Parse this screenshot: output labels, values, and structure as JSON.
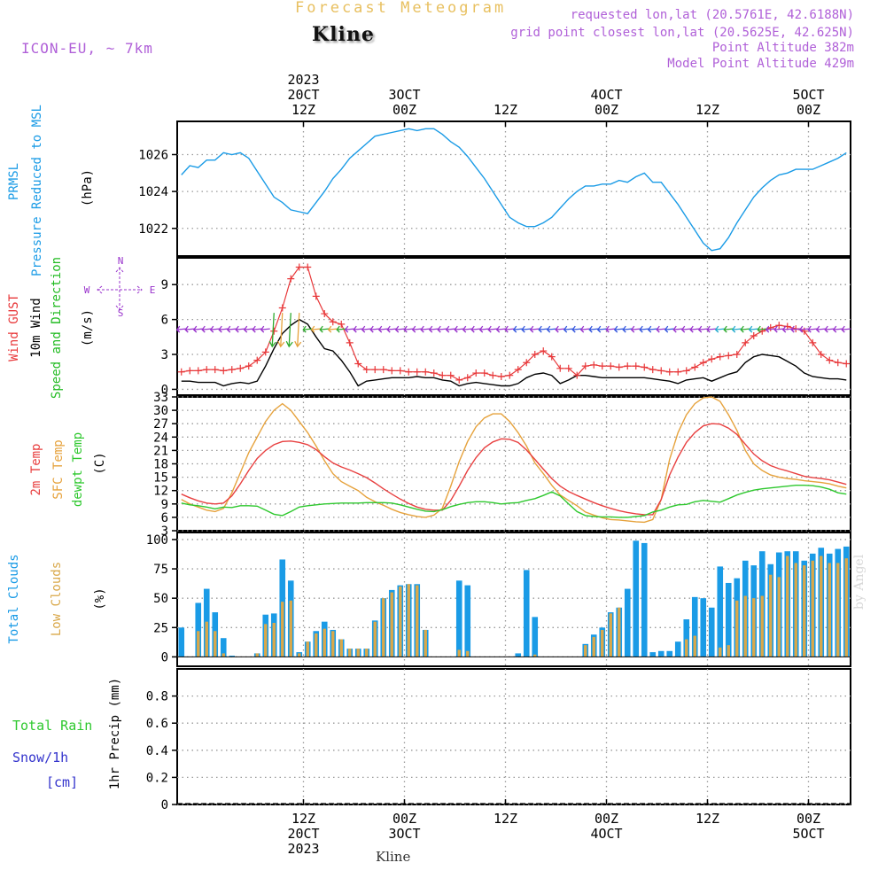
{
  "header": {
    "title": "Forecast Meteogram",
    "location": "Kline",
    "model": "ICON-EU, ~ 7km",
    "requested": "requested lon,lat (20.5761E, 42.6188N)",
    "gridpoint": "grid point closest lon,lat (20.5625E, 42.625N)",
    "point_altitude": "Point Altitude 382m",
    "model_altitude": "Model Point Altitude 429m"
  },
  "footer": {
    "location": "Kline",
    "watermark": "by Angel"
  },
  "colors": {
    "pressure": "#1a9be6",
    "gust": "#e8383a",
    "wind": "#000000",
    "dir": "#22bb22",
    "temp2m": "#e84040",
    "sfc": "#e6a23c",
    "dew": "#2ec82e",
    "cloud_total": "#1a9be6",
    "cloud_low": "#d9a84a",
    "arrow": "#9933cc",
    "snow": "#3333cc",
    "label_purple": "#b060d8"
  },
  "time_axis": {
    "top": [
      {
        "t": 15,
        "lines": [
          "2023",
          "20CT",
          "12Z"
        ]
      },
      {
        "t": 27,
        "lines": [
          "3OCT",
          "00Z"
        ]
      },
      {
        "t": 39,
        "lines": [
          "12Z"
        ]
      },
      {
        "t": 51,
        "lines": [
          "4OCT",
          "00Z"
        ]
      },
      {
        "t": 63,
        "lines": [
          "12Z"
        ]
      },
      {
        "t": 75,
        "lines": [
          "5OCT",
          "00Z"
        ]
      }
    ],
    "bottom": [
      {
        "t": 15,
        "lines": [
          "12Z",
          "20CT",
          "2023"
        ]
      },
      {
        "t": 27,
        "lines": [
          "00Z",
          "3OCT"
        ]
      },
      {
        "t": 39,
        "lines": [
          "12Z"
        ]
      },
      {
        "t": 51,
        "lines": [
          "00Z",
          "4OCT"
        ]
      },
      {
        "t": 63,
        "lines": [
          "12Z"
        ]
      },
      {
        "t": 75,
        "lines": [
          "00Z",
          "5OCT"
        ]
      }
    ]
  },
  "chart_data": [
    {
      "id": "pressure",
      "type": "line",
      "title": "PRMSL Pressure Reduced to MSL",
      "ylabel": "(hPa)",
      "ylim": [
        1020.5,
        1027.8
      ],
      "yticks": [
        1022,
        1024,
        1026
      ],
      "series": [
        {
          "name": "PRMSL",
          "values": [
            1024.9,
            1025.4,
            1025.3,
            1025.7,
            1025.7,
            1026.1,
            1026.0,
            1026.1,
            1025.8,
            1025.1,
            1024.4,
            1023.7,
            1023.4,
            1023.0,
            1022.9,
            1022.8,
            1023.4,
            1024.0,
            1024.7,
            1025.2,
            1025.8,
            1026.2,
            1026.6,
            1027.0,
            1027.1,
            1027.2,
            1027.3,
            1027.4,
            1027.3,
            1027.4,
            1027.4,
            1027.1,
            1026.7,
            1026.4,
            1025.9,
            1025.3,
            1024.7,
            1024.0,
            1023.3,
            1022.6,
            1022.3,
            1022.1,
            1022.1,
            1022.3,
            1022.6,
            1023.1,
            1023.6,
            1024.0,
            1024.3,
            1024.3,
            1024.4,
            1024.4,
            1024.6,
            1024.5,
            1024.8,
            1025.0,
            1024.5,
            1024.5,
            1023.9,
            1023.3,
            1022.6,
            1021.9,
            1021.2,
            1020.8,
            1020.9,
            1021.5,
            1022.3,
            1023.0,
            1023.7,
            1024.2,
            1024.6,
            1024.9,
            1025.0,
            1025.2,
            1025.2,
            1025.2,
            1025.4,
            1025.6,
            1025.8,
            1026.1
          ]
        }
      ]
    },
    {
      "id": "wind",
      "type": "line",
      "title": "Wind GUST, 10m Wind Speed and Direction",
      "ylabel": "(m/s)",
      "ylim": [
        -0.5,
        11.3
      ],
      "yticks": [
        0,
        3,
        6,
        9
      ],
      "compass": {
        "w": "W",
        "e": "E",
        "n": "N",
        "s": "S"
      },
      "series": [
        {
          "name": "Wind GUST",
          "values": [
            1.5,
            1.6,
            1.6,
            1.7,
            1.7,
            1.6,
            1.7,
            1.8,
            2.0,
            2.5,
            3.2,
            5.0,
            7.0,
            9.5,
            10.5,
            10.5,
            8.0,
            6.5,
            5.8,
            5.6,
            4.0,
            2.2,
            1.7,
            1.7,
            1.7,
            1.6,
            1.6,
            1.5,
            1.5,
            1.5,
            1.4,
            1.2,
            1.2,
            0.8,
            1.0,
            1.4,
            1.4,
            1.2,
            1.1,
            1.2,
            1.7,
            2.3,
            3.0,
            3.3,
            2.8,
            1.8,
            1.8,
            1.2,
            2.0,
            2.1,
            2.0,
            2.0,
            1.9,
            2.0,
            2.0,
            1.9,
            1.7,
            1.6,
            1.5,
            1.5,
            1.6,
            1.9,
            2.3,
            2.6,
            2.8,
            2.9,
            3.0,
            4.0,
            4.6,
            5.0,
            5.3,
            5.5,
            5.4,
            5.2,
            5.0,
            4.0,
            3.0,
            2.5,
            2.3,
            2.2
          ]
        },
        {
          "name": "10m Wind",
          "values": [
            0.7,
            0.7,
            0.6,
            0.6,
            0.6,
            0.3,
            0.5,
            0.6,
            0.5,
            0.7,
            2.0,
            3.5,
            4.8,
            5.5,
            6.0,
            5.6,
            4.5,
            3.5,
            3.3,
            2.5,
            1.5,
            0.3,
            0.7,
            0.8,
            0.9,
            1.0,
            1.0,
            1.0,
            1.1,
            1.0,
            1.0,
            0.8,
            0.7,
            0.3,
            0.5,
            0.6,
            0.5,
            0.4,
            0.3,
            0.3,
            0.5,
            1.0,
            1.3,
            1.4,
            1.2,
            0.5,
            0.8,
            1.2,
            1.2,
            1.1,
            1.0,
            1.0,
            1.0,
            1.0,
            1.0,
            1.0,
            0.9,
            0.8,
            0.7,
            0.5,
            0.8,
            0.9,
            1.0,
            0.7,
            1.0,
            1.3,
            1.5,
            2.3,
            2.8,
            3.0,
            2.9,
            2.8,
            2.4,
            2.0,
            1.4,
            1.1,
            1.0,
            0.9,
            0.9,
            0.8
          ]
        }
      ],
      "arrow_level": 5.2
    },
    {
      "id": "temp",
      "type": "line",
      "title": "2m Temp, SFC Temp, dewpt Temp",
      "ylabel": "(C)",
      "ylim": [
        3,
        33
      ],
      "yticks": [
        3,
        6,
        9,
        12,
        15,
        18,
        21,
        24,
        27,
        30,
        33
      ],
      "series": [
        {
          "name": "2m Temp",
          "values": [
            11.2,
            10.4,
            9.7,
            9.2,
            9.0,
            9.2,
            10.8,
            13.5,
            16.5,
            19.2,
            21.0,
            22.3,
            23.0,
            23.1,
            22.8,
            22.3,
            21.2,
            19.6,
            18.2,
            17.3,
            16.6,
            15.8,
            14.9,
            13.7,
            12.4,
            11.2,
            10.1,
            9.1,
            8.3,
            7.8,
            7.6,
            7.6,
            9.8,
            13.0,
            16.5,
            19.4,
            21.6,
            22.9,
            23.6,
            23.5,
            22.8,
            21.1,
            19.0,
            16.8,
            14.7,
            13.0,
            11.8,
            10.9,
            10.1,
            9.3,
            8.6,
            8.0,
            7.5,
            7.1,
            6.8,
            6.6,
            6.6,
            10.0,
            15.5,
            19.5,
            22.8,
            25.0,
            26.5,
            27.0,
            26.9,
            26.0,
            24.6,
            22.4,
            20.2,
            18.7,
            17.6,
            16.9,
            16.4,
            15.8,
            15.2,
            14.9,
            14.7,
            14.4,
            13.9,
            13.4
          ]
        },
        {
          "name": "SFC Temp",
          "values": [
            10.0,
            9.0,
            8.3,
            7.6,
            7.3,
            8.0,
            11.5,
            16.0,
            20.5,
            24.0,
            27.5,
            30.0,
            31.5,
            30.0,
            27.5,
            25.0,
            22.0,
            18.7,
            15.8,
            14.0,
            13.0,
            12.0,
            10.5,
            9.5,
            8.7,
            7.8,
            7.1,
            6.6,
            6.2,
            6.0,
            6.5,
            8.0,
            13.0,
            18.5,
            23.0,
            26.3,
            28.3,
            29.2,
            29.2,
            27.5,
            25.0,
            22.0,
            18.2,
            15.8,
            13.2,
            11.0,
            9.8,
            8.6,
            7.2,
            6.5,
            5.9,
            5.5,
            5.4,
            5.2,
            5.0,
            4.9,
            5.5,
            10.0,
            19.0,
            25.0,
            29.0,
            31.5,
            32.8,
            33.0,
            32.0,
            29.0,
            25.5,
            21.0,
            18.0,
            16.5,
            15.5,
            15.0,
            14.7,
            14.5,
            14.2,
            14.0,
            13.8,
            13.5,
            13.0,
            12.6
          ]
        },
        {
          "name": "dewpt Temp",
          "values": [
            9.2,
            8.8,
            8.6,
            8.3,
            7.9,
            8.3,
            8.2,
            8.6,
            8.6,
            8.5,
            7.6,
            6.7,
            6.4,
            7.3,
            8.3,
            8.6,
            8.8,
            9.0,
            9.1,
            9.2,
            9.2,
            9.2,
            9.3,
            9.3,
            9.3,
            9.2,
            8.8,
            8.3,
            7.8,
            7.4,
            7.3,
            7.7,
            8.4,
            8.9,
            9.3,
            9.5,
            9.5,
            9.3,
            9.0,
            9.2,
            9.3,
            9.8,
            10.2,
            10.9,
            11.7,
            10.8,
            9.0,
            7.3,
            6.4,
            6.2,
            6.1,
            6.1,
            6.0,
            6.0,
            6.2,
            6.4,
            7.2,
            7.6,
            8.3,
            8.8,
            8.9,
            9.5,
            9.8,
            9.6,
            9.4,
            10.2,
            11.0,
            11.6,
            12.1,
            12.4,
            12.6,
            12.8,
            13.0,
            13.2,
            13.2,
            13.1,
            12.8,
            12.3,
            11.5,
            11.2
          ]
        }
      ]
    },
    {
      "id": "clouds",
      "type": "bar",
      "title": "Total Clouds, Low Clouds",
      "ylabel": "(%)",
      "ylim": [
        -8,
        106
      ],
      "yticks": [
        0,
        25,
        50,
        75,
        100
      ],
      "series": [
        {
          "name": "Total Clouds",
          "values": [
            25,
            0,
            46,
            58,
            38,
            16,
            1,
            0,
            0,
            3,
            36,
            37,
            83,
            65,
            4,
            13,
            22,
            30,
            23,
            15,
            7,
            7,
            7,
            31,
            50,
            57,
            61,
            62,
            62,
            23,
            0,
            0,
            0,
            65,
            61,
            0,
            0,
            0,
            0,
            0,
            3,
            74,
            34,
            0,
            0,
            0,
            0,
            0,
            11,
            19,
            25,
            38,
            42,
            58,
            99,
            97,
            4,
            5,
            5,
            13,
            32,
            51,
            50,
            42,
            77,
            63,
            67,
            82,
            78,
            90,
            79,
            89,
            90,
            90,
            82,
            88,
            93,
            88,
            92,
            94
          ]
        },
        {
          "name": "Low Clouds",
          "values": [
            0,
            0,
            22,
            30,
            22,
            3,
            0,
            0,
            0,
            3,
            28,
            29,
            47,
            48,
            3,
            13,
            20,
            24,
            22,
            15,
            7,
            7,
            7,
            30,
            50,
            55,
            60,
            62,
            61,
            23,
            0,
            0,
            0,
            6,
            5,
            0,
            0,
            0,
            0,
            0,
            0,
            0,
            2,
            0,
            0,
            0,
            0,
            0,
            10,
            17,
            23,
            37,
            42,
            0,
            0,
            0,
            0,
            0,
            0,
            0,
            15,
            18,
            0,
            0,
            8,
            10,
            48,
            52,
            50,
            52,
            70,
            68,
            86,
            80,
            78,
            82,
            86,
            80,
            80,
            84
          ]
        }
      ]
    },
    {
      "id": "precip",
      "type": "bar",
      "title": "Total Rain, Snow/1h [cm]",
      "ylabel": "1hr Precip (mm)",
      "ylim": [
        0,
        1.0
      ],
      "yticks": [
        0,
        0.2,
        0.4,
        0.6,
        0.8
      ],
      "legend": {
        "rain": "Total  Rain",
        "snow": "Snow/1h",
        "cm": "[cm]"
      },
      "series": [
        {
          "name": "Total Rain",
          "values": [
            0,
            0,
            0,
            0,
            0,
            0,
            0,
            0,
            0,
            0,
            0,
            0,
            0,
            0,
            0,
            0,
            0,
            0,
            0,
            0,
            0,
            0,
            0,
            0,
            0,
            0,
            0,
            0,
            0,
            0,
            0,
            0,
            0,
            0,
            0,
            0,
            0,
            0,
            0,
            0,
            0,
            0,
            0,
            0,
            0,
            0,
            0,
            0,
            0,
            0,
            0,
            0,
            0,
            0,
            0,
            0,
            0,
            0,
            0,
            0,
            0,
            0,
            0,
            0,
            0,
            0,
            0,
            0,
            0,
            0,
            0,
            0,
            0,
            0,
            0,
            0,
            0,
            0,
            0,
            0
          ]
        }
      ]
    }
  ]
}
